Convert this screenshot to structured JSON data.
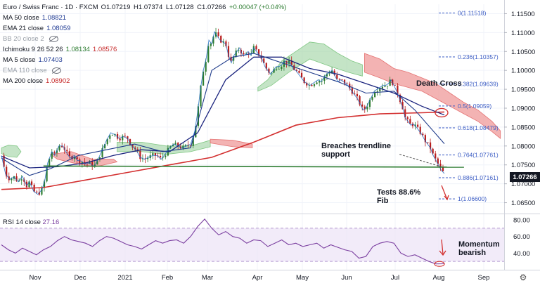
{
  "header": {
    "symbol": "Euro / Swiss Franc · 1D · FXCM",
    "ohlc": {
      "open": "O1.07219",
      "high": "H1.07374",
      "low": "L1.07128",
      "close": "C1.07266",
      "change": "+0.00047 (+0.04%)"
    }
  },
  "indicators": [
    {
      "label": "MA 50 close",
      "value": "1.08821",
      "color": "#1f3a93",
      "hidden": false
    },
    {
      "label": "EMA 21 close",
      "value": "1.08059",
      "color": "#1f3a93",
      "hidden": false
    },
    {
      "label": "BB 20 close 2",
      "value": "",
      "color": "#9aa0a8",
      "hidden": true
    },
    {
      "label": "Ichimoku 9 26 52 26",
      "value": "1.08134",
      "value2": "1.08576",
      "color": "#2e7d32",
      "color2": "#c62828",
      "hidden": false
    },
    {
      "label": "MA 5 close",
      "value": "1.07403",
      "color": "#1f3a93",
      "hidden": false
    },
    {
      "label": "EMA 110 close",
      "value": "",
      "color": "#9aa0a8",
      "hidden": true
    },
    {
      "label": "MA 200 close",
      "value": "1.08902",
      "color": "#c62828",
      "hidden": false
    }
  ],
  "rsi": {
    "label": "RSI 14 close",
    "value": "27.16"
  },
  "last_price": "1.07266",
  "annotations": {
    "death_cross": "Death Cross",
    "breaches": [
      "Breaches trendline",
      "support"
    ],
    "tests": [
      "Tests 88.6%",
      "Fib"
    ],
    "momentum": [
      "Momentum",
      "bearish"
    ]
  },
  "chart_data": {
    "type": "candlestick",
    "x_ticks": [
      "Nov",
      "Dec",
      "2021",
      "Feb",
      "Mar",
      "Apr",
      "May",
      "Jun",
      "Jul",
      "Aug",
      "Sep"
    ],
    "y_ticks": [
      "1.11500",
      "1.11000",
      "1.10500",
      "1.10000",
      "1.09500",
      "1.09000",
      "1.08500",
      "1.08000",
      "1.07500",
      "1.07000",
      "1.06500"
    ],
    "y_range": [
      1.0625,
      1.1175
    ],
    "rsi_ticks": [
      "80.00",
      "60.00",
      "40.00"
    ],
    "rsi_range": [
      20,
      86
    ],
    "fib_levels": [
      {
        "label": "0(1.11518)",
        "value": 1.11518
      },
      {
        "label": "0.236(1.10357)",
        "value": 1.10357
      },
      {
        "label": "0.382(1.09639)",
        "value": 1.09639
      },
      {
        "label": "0.5(1.09059)",
        "value": 1.09059
      },
      {
        "label": "0.618(1.08479)",
        "value": 1.08479
      },
      {
        "label": "0.764(1.07761)",
        "value": 1.07761
      },
      {
        "label": "0.886(1.07161)",
        "value": 1.07161
      },
      {
        "label": "1(1.06600)",
        "value": 1.066
      }
    ],
    "close_path": [
      [
        0,
        1.0775
      ],
      [
        6,
        1.0725
      ],
      [
        12,
        1.0712
      ],
      [
        18,
        1.0718
      ],
      [
        24,
        1.0705
      ],
      [
        30,
        1.072
      ],
      [
        36,
        1.0695
      ],
      [
        40,
        1.0705
      ],
      [
        46,
        1.068
      ],
      [
        52,
        1.0672
      ],
      [
        58,
        1.0685
      ],
      [
        62,
        1.071
      ],
      [
        66,
        1.0755
      ],
      [
        72,
        1.0785
      ],
      [
        76,
        1.0775
      ],
      [
        82,
        1.08
      ],
      [
        88,
        1.08
      ],
      [
        92,
        1.0785
      ],
      [
        98,
        1.0768
      ],
      [
        104,
        1.0775
      ],
      [
        108,
        1.0762
      ],
      [
        114,
        1.076
      ],
      [
        120,
        1.0752
      ],
      [
        126,
        1.0755
      ],
      [
        132,
        1.0745
      ],
      [
        138,
        1.0765
      ],
      [
        144,
        1.079
      ],
      [
        150,
        1.0815
      ],
      [
        156,
        1.0835
      ],
      [
        162,
        1.083
      ],
      [
        168,
        1.082
      ],
      [
        174,
        1.0825
      ],
      [
        180,
        1.082
      ],
      [
        186,
        1.08
      ],
      [
        192,
        1.079
      ],
      [
        198,
        1.077
      ],
      [
        204,
        1.0765
      ],
      [
        210,
        1.077
      ],
      [
        216,
        1.0775
      ],
      [
        222,
        1.0775
      ],
      [
        228,
        1.0765
      ],
      [
        234,
        1.078
      ],
      [
        240,
        1.0795
      ],
      [
        246,
        1.0805
      ],
      [
        252,
        1.08
      ],
      [
        258,
        1.0795
      ],
      [
        264,
        1.08
      ],
      [
        270,
        1.0805
      ],
      [
        276,
        1.084
      ],
      [
        280,
        1.089
      ],
      [
        284,
        1.095
      ],
      [
        288,
        1.1
      ],
      [
        292,
        1.103
      ],
      [
        296,
        1.108
      ],
      [
        300,
        1.107
      ],
      [
        304,
        1.1102
      ],
      [
        308,
        1.109
      ],
      [
        312,
        1.108
      ],
      [
        316,
        1.1075
      ],
      [
        320,
        1.107
      ],
      [
        324,
        1.104
      ],
      [
        328,
        1.102
      ],
      [
        332,
        1.104
      ],
      [
        336,
        1.105
      ],
      [
        340,
        1.106
      ],
      [
        344,
        1.104
      ],
      [
        348,
        1.104
      ],
      [
        352,
        1.105
      ],
      [
        356,
        1.104
      ],
      [
        360,
        1.106
      ],
      [
        364,
        1.105
      ],
      [
        368,
        1.104
      ],
      [
        372,
        1.103
      ],
      [
        376,
        1.101
      ],
      [
        380,
        1.1
      ],
      [
        384,
        1.099
      ],
      [
        388,
        1.1
      ],
      [
        392,
        1.101
      ],
      [
        396,
        1.101
      ],
      [
        400,
        1.1015
      ],
      [
        404,
        1.1025
      ],
      [
        408,
        1.102
      ],
      [
        412,
        1.102
      ],
      [
        416,
        1.1005
      ],
      [
        420,
        1.1
      ],
      [
        424,
        1.099
      ],
      [
        428,
        1.098
      ],
      [
        432,
        1.097
      ],
      [
        436,
        1.0965
      ],
      [
        440,
        1.096
      ],
      [
        444,
        1.0965
      ],
      [
        448,
        1.097
      ],
      [
        452,
        1.0975
      ],
      [
        456,
        1.097
      ],
      [
        460,
        1.098
      ],
      [
        464,
        1.099
      ],
      [
        468,
        1.0995
      ],
      [
        472,
        1.1
      ],
      [
        476,
        1.0985
      ],
      [
        480,
        1.097
      ],
      [
        484,
        1.0975
      ],
      [
        488,
        1.097
      ],
      [
        492,
        1.0965
      ],
      [
        496,
        1.0955
      ],
      [
        500,
        1.0945
      ],
      [
        504,
        1.0935
      ],
      [
        508,
        1.0925
      ],
      [
        512,
        1.091
      ],
      [
        516,
        1.0895
      ],
      [
        520,
        1.09
      ],
      [
        524,
        1.0915
      ],
      [
        528,
        1.093
      ],
      [
        532,
        1.0945
      ],
      [
        536,
        1.095
      ],
      [
        540,
        1.0955
      ],
      [
        544,
        1.096
      ],
      [
        548,
        1.096
      ],
      [
        552,
        1.0965
      ],
      [
        556,
        1.0975
      ],
      [
        560,
        1.096
      ],
      [
        564,
        1.0945
      ],
      [
        568,
        1.0925
      ],
      [
        572,
        1.0905
      ],
      [
        576,
        1.0875
      ],
      [
        580,
        1.0865
      ],
      [
        584,
        1.0855
      ],
      [
        588,
        1.0858
      ],
      [
        592,
        1.085
      ],
      [
        596,
        1.084
      ],
      [
        600,
        1.083
      ],
      [
        604,
        1.0815
      ],
      [
        608,
        1.0805
      ],
      [
        612,
        1.0795
      ],
      [
        616,
        1.0775
      ],
      [
        620,
        1.0762
      ],
      [
        624,
        1.0748
      ],
      [
        628,
        1.0735
      ],
      [
        632,
        1.0727
      ]
    ],
    "ma50_path": [
      [
        0,
        1.0773
      ],
      [
        40,
        1.0742
      ],
      [
        80,
        1.0745
      ],
      [
        120,
        1.0755
      ],
      [
        160,
        1.0775
      ],
      [
        200,
        1.079
      ],
      [
        240,
        1.0785
      ],
      [
        280,
        1.0835
      ],
      [
        320,
        1.0975
      ],
      [
        360,
        1.1035
      ],
      [
        400,
        1.1035
      ],
      [
        440,
        1.1005
      ],
      [
        480,
        1.099
      ],
      [
        520,
        1.0965
      ],
      [
        560,
        1.094
      ],
      [
        600,
        1.0905
      ],
      [
        632,
        1.0882
      ]
    ],
    "ema21_path": [
      [
        0,
        1.0768
      ],
      [
        40,
        1.0722
      ],
      [
        70,
        1.074
      ],
      [
        110,
        1.0775
      ],
      [
        150,
        1.079
      ],
      [
        190,
        1.0805
      ],
      [
        230,
        1.0785
      ],
      [
        270,
        1.0795
      ],
      [
        300,
        1.1
      ],
      [
        330,
        1.1035
      ],
      [
        360,
        1.1045
      ],
      [
        400,
        1.102
      ],
      [
        440,
        1.0995
      ],
      [
        480,
        1.097
      ],
      [
        520,
        1.094
      ],
      [
        560,
        1.0945
      ],
      [
        590,
        1.0895
      ],
      [
        632,
        1.0806
      ]
    ],
    "ma200_path": [
      [
        0,
        1.0685
      ],
      [
        60,
        1.069
      ],
      [
        120,
        1.071
      ],
      [
        180,
        1.073
      ],
      [
        240,
        1.075
      ],
      [
        300,
        1.077
      ],
      [
        360,
        1.081
      ],
      [
        420,
        1.0855
      ],
      [
        480,
        1.0875
      ],
      [
        540,
        1.0885
      ],
      [
        600,
        1.0888
      ],
      [
        632,
        1.089
      ]
    ],
    "trendline": [
      [
        60,
        1.0747
      ],
      [
        660,
        1.0744
      ]
    ],
    "rsi_path": [
      [
        0,
        50
      ],
      [
        10,
        44
      ],
      [
        20,
        40
      ],
      [
        30,
        46
      ],
      [
        40,
        42
      ],
      [
        50,
        38
      ],
      [
        60,
        44
      ],
      [
        70,
        48
      ],
      [
        80,
        55
      ],
      [
        90,
        60
      ],
      [
        100,
        56
      ],
      [
        110,
        54
      ],
      [
        120,
        52
      ],
      [
        130,
        48
      ],
      [
        140,
        55
      ],
      [
        150,
        60
      ],
      [
        160,
        58
      ],
      [
        170,
        54
      ],
      [
        180,
        50
      ],
      [
        190,
        48
      ],
      [
        200,
        45
      ],
      [
        210,
        50
      ],
      [
        220,
        55
      ],
      [
        230,
        52
      ],
      [
        240,
        55
      ],
      [
        250,
        56
      ],
      [
        260,
        52
      ],
      [
        270,
        60
      ],
      [
        280,
        72
      ],
      [
        290,
        81
      ],
      [
        300,
        70
      ],
      [
        310,
        62
      ],
      [
        320,
        66
      ],
      [
        330,
        60
      ],
      [
        340,
        58
      ],
      [
        350,
        52
      ],
      [
        360,
        56
      ],
      [
        370,
        55
      ],
      [
        380,
        48
      ],
      [
        390,
        52
      ],
      [
        400,
        56
      ],
      [
        410,
        50
      ],
      [
        420,
        52
      ],
      [
        430,
        48
      ],
      [
        440,
        50
      ],
      [
        450,
        52
      ],
      [
        460,
        46
      ],
      [
        470,
        50
      ],
      [
        480,
        47
      ],
      [
        490,
        44
      ],
      [
        500,
        42
      ],
      [
        510,
        34
      ],
      [
        520,
        36
      ],
      [
        530,
        48
      ],
      [
        540,
        52
      ],
      [
        550,
        54
      ],
      [
        560,
        52
      ],
      [
        570,
        40
      ],
      [
        580,
        36
      ],
      [
        590,
        38
      ],
      [
        600,
        34
      ],
      [
        610,
        30
      ],
      [
        620,
        27
      ],
      [
        632,
        27.16
      ]
    ]
  }
}
